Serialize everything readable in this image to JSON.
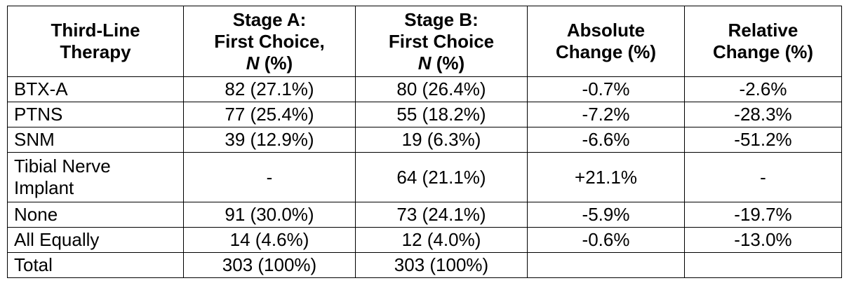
{
  "table": {
    "headers": [
      {
        "lines": [
          "Third-Line",
          "Therapy"
        ],
        "italic_tail": null
      },
      {
        "lines": [
          "Stage A:",
          "First Choice,"
        ],
        "italic_tail": {
          "italic": "N",
          "rest": " (%)"
        }
      },
      {
        "lines": [
          "Stage B:",
          "First Choice"
        ],
        "italic_tail": {
          "italic": "N",
          "rest": " (%)"
        }
      },
      {
        "lines": [
          "Absolute",
          "Change (%)"
        ],
        "italic_tail": null
      },
      {
        "lines": [
          "Relative",
          "Change (%)"
        ],
        "italic_tail": null
      }
    ],
    "rows": [
      {
        "therapy": "BTX-A",
        "stage_a": "82 (27.1%)",
        "stage_b": "80 (26.4%)",
        "absolute": "-0.7%",
        "relative": "-2.6%"
      },
      {
        "therapy": "PTNS",
        "stage_a": "77 (25.4%)",
        "stage_b": "55 (18.2%)",
        "absolute": "-7.2%",
        "relative": "-28.3%"
      },
      {
        "therapy": "SNM",
        "stage_a": "39 (12.9%)",
        "stage_b": "19 (6.3%)",
        "absolute": "-6.6%",
        "relative": "-51.2%"
      },
      {
        "therapy_lines": [
          "Tibial Nerve",
          "Implant"
        ],
        "stage_a": "-",
        "stage_b": "64 (21.1%)",
        "absolute": "+21.1%",
        "relative": "-"
      },
      {
        "therapy": "None",
        "stage_a": "91 (30.0%)",
        "stage_b": "73 (24.1%)",
        "absolute": "-5.9%",
        "relative": "-19.7%"
      },
      {
        "therapy": "All Equally",
        "stage_a": "14 (4.6%)",
        "stage_b": "12 (4.0%)",
        "absolute": "-0.6%",
        "relative": "-13.0%"
      },
      {
        "therapy": "Total",
        "stage_a": "303 (100%)",
        "stage_b": "303 (100%)",
        "absolute": "",
        "relative": ""
      }
    ]
  }
}
